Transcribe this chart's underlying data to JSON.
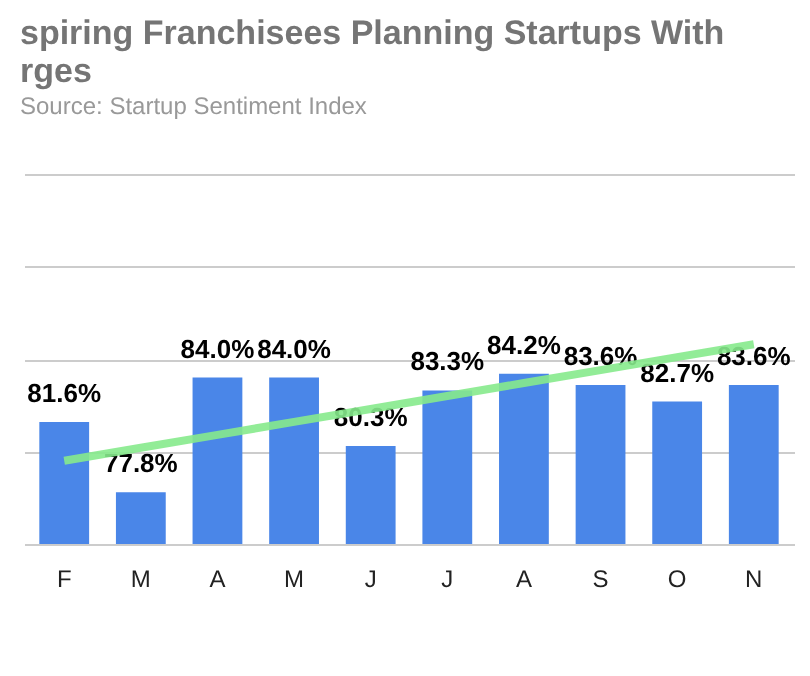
{
  "chart_data": {
    "type": "bar",
    "title": "spiring Franchisees Planning Startups With\nrges",
    "annotations": [
      "Source: Startup Sentiment Index"
    ],
    "categories": [
      "F",
      "M",
      "A",
      "M",
      "J",
      "J",
      "A",
      "S",
      "O",
      "N"
    ],
    "series": [
      {
        "color": "#4a86e8",
        "values": [
          81.6,
          77.8,
          84.0,
          84.0,
          80.3,
          83.3,
          84.2,
          83.6,
          82.7,
          83.6
        ],
        "value_labels": [
          "81.6%",
          "77.8%",
          "84.0%",
          "84.0%",
          "80.3%",
          "83.3%",
          "84.2%",
          "83.6%",
          "82.7%",
          "83.6%"
        ]
      },
      {
        "type": "line",
        "color": "#86ea8c",
        "values": [
          79.5,
          80.2,
          80.9,
          81.6,
          82.3,
          83.0,
          83.7,
          84.4,
          85.1,
          85.8
        ]
      }
    ],
    "ylim": [
      75,
      95
    ],
    "yticks": [
      {
        "value": 75,
        "label": null
      },
      {
        "value": 80,
        "label": null
      },
      {
        "value": 85,
        "label": null
      },
      {
        "value": 90,
        "label": null
      },
      {
        "value": 95,
        "label": null
      }
    ],
    "grid": true
  }
}
